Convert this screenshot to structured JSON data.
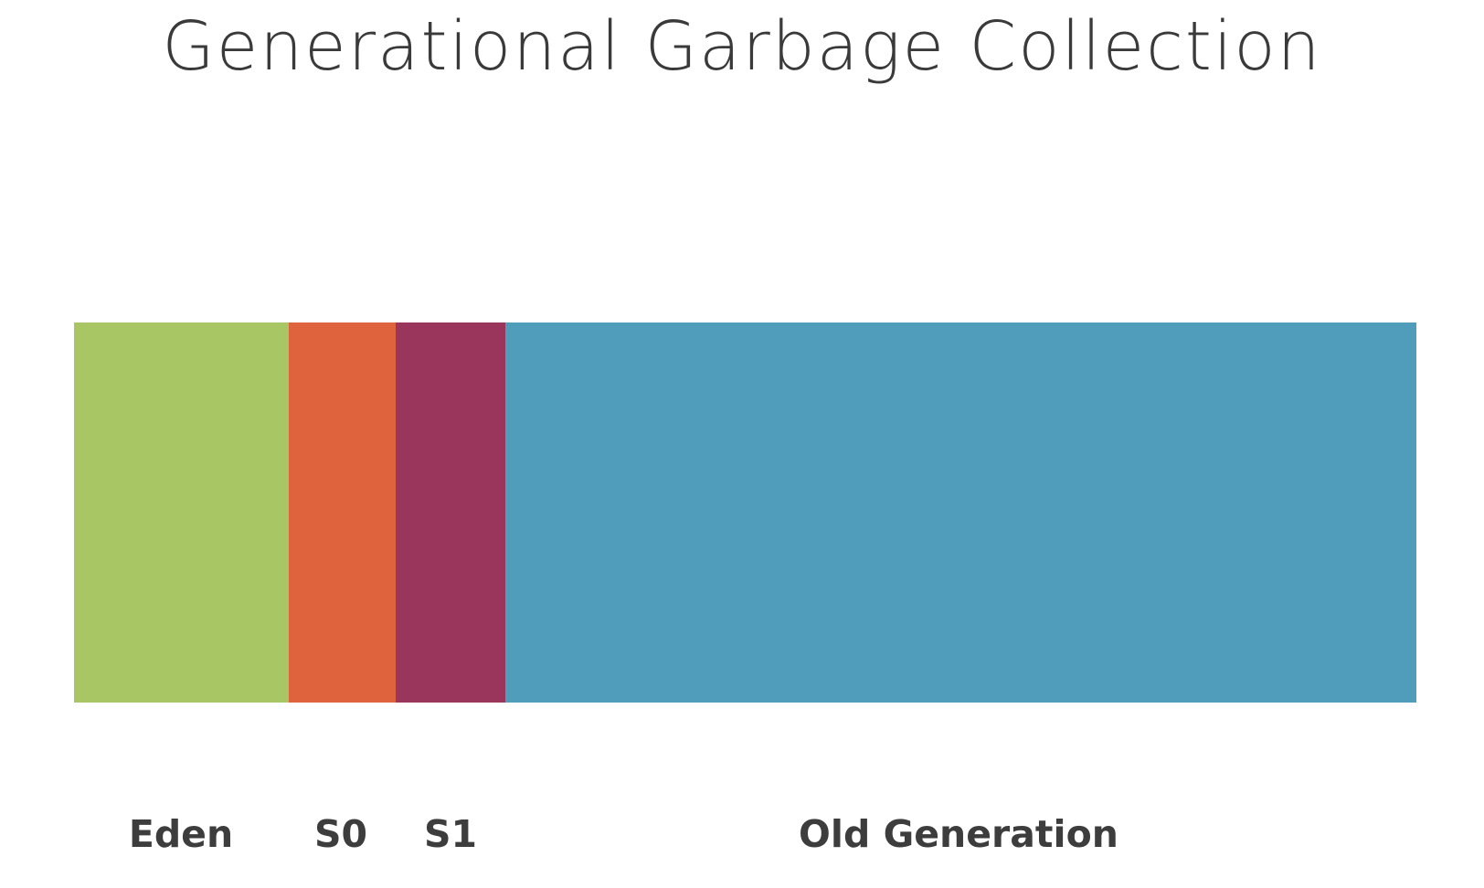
{
  "title": "Generational Garbage Collection",
  "regions": [
    {
      "key": "eden",
      "label": "Eden",
      "color": "#a8c663"
    },
    {
      "key": "s0",
      "label": "S0",
      "color": "#df633c"
    },
    {
      "key": "s1",
      "label": "S1",
      "color": "#9a365b"
    },
    {
      "key": "old",
      "label": "Old Generation",
      "color": "#4f9dba"
    }
  ]
}
